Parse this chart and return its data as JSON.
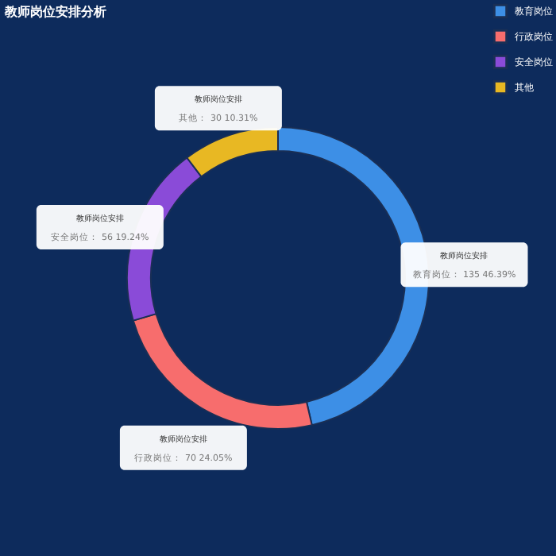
{
  "chart_data": {
    "type": "donut",
    "title": "教师岗位安排分析",
    "categories": [
      "教育岗位",
      "行政岗位",
      "安全岗位",
      "其他"
    ],
    "values": [
      135,
      70,
      56,
      30
    ],
    "colors": [
      "#3d8fe6",
      "#f76d6d",
      "#8a4bd8",
      "#e8b823"
    ],
    "value_labels": [
      "教育岗位： 135 46.39%",
      "行政岗位： 70 24.05%",
      "安全岗位： 56 19.24%",
      "其他： 30 10.31%"
    ],
    "annotations": [
      {
        "text": "教师岗位安排",
        "x": "教育岗位"
      },
      {
        "text": "教师岗位安排",
        "x": "行政岗位"
      },
      {
        "text": "教师岗位安排",
        "x": "安全岗位"
      },
      {
        "text": "教师岗位安排",
        "x": "其他"
      }
    ],
    "legend": "top right"
  }
}
